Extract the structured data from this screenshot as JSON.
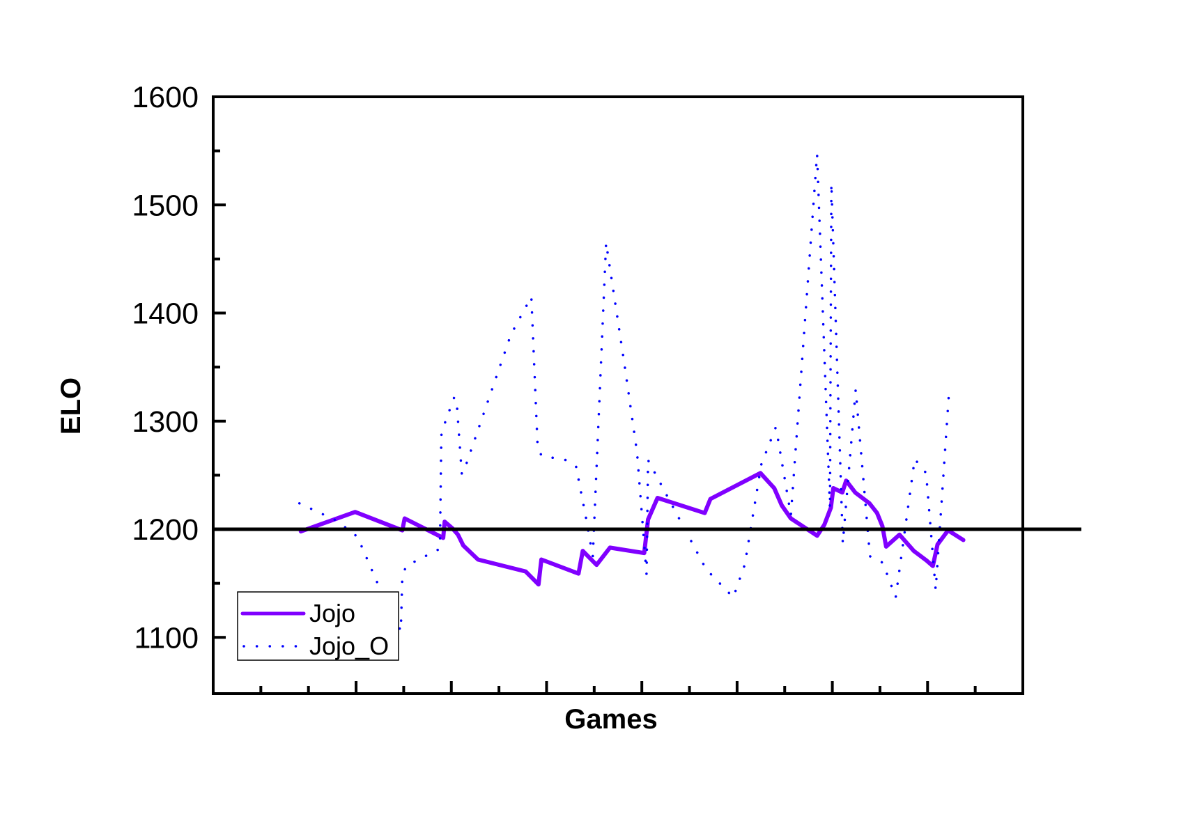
{
  "chart_data": {
    "type": "line",
    "title": "",
    "xlabel": "Games",
    "ylabel": "ELO",
    "xlim": [
      0,
      17
    ],
    "ylim": [
      1048,
      1600
    ],
    "x_ticks_minor": [
      1,
      2,
      3,
      4,
      5,
      6,
      7,
      8,
      9,
      10,
      11,
      12,
      13,
      14,
      15,
      16
    ],
    "x_ticks_major": [
      3,
      5,
      7,
      9,
      11,
      13,
      15
    ],
    "x_tick_labels": [],
    "y_ticks": [
      1100,
      1200,
      1300,
      1400,
      1500,
      1600
    ],
    "y_tick_labels": [
      "1100",
      "1200",
      "1300",
      "1400",
      "1500",
      "1600"
    ],
    "y_minor_ticks": [
      1150,
      1250,
      1350,
      1450,
      1550
    ],
    "grid": false,
    "legend_position": "bottom-left",
    "reference_line": {
      "y": 1200,
      "color": "#000000"
    },
    "series": [
      {
        "name": "Jojo",
        "style": "solid",
        "color": "#8000ff",
        "x": [
          1.84,
          2.98,
          3.97,
          4.02,
          4.83,
          4.86,
          5.02,
          5.14,
          5.25,
          5.56,
          6.56,
          6.83,
          6.89,
          7.67,
          7.76,
          8.05,
          8.33,
          9.05,
          9.13,
          9.33,
          10.32,
          10.44,
          11.49,
          11.78,
          11.94,
          12.13,
          12.68,
          12.83,
          12.97,
          13.02,
          13.21,
          13.29,
          13.48,
          13.78,
          13.94,
          14.05,
          14.13,
          14.41,
          14.71,
          14.98,
          15.11,
          15.21,
          15.43,
          15.75
        ],
        "y": [
          1198,
          1216,
          1199,
          1210,
          1192,
          1207,
          1201,
          1195,
          1185,
          1172,
          1161,
          1149,
          1172,
          1159,
          1180,
          1167,
          1183,
          1178,
          1209,
          1229,
          1215,
          1228,
          1252,
          1238,
          1222,
          1210,
          1194,
          1204,
          1220,
          1238,
          1234,
          1245,
          1234,
          1224,
          1215,
          1203,
          1184,
          1195,
          1180,
          1171,
          1166,
          1186,
          1199,
          1190
        ]
      },
      {
        "name": "Jojo_O",
        "style": "dotted",
        "color": "#0000ff",
        "x": [
          1.81,
          2.59,
          3.03,
          3.49,
          3.94,
          3.97,
          4.05,
          4.76,
          4.79,
          4.87,
          5.06,
          5.11,
          5.22,
          5.32,
          6.25,
          6.68,
          6.81,
          6.89,
          7.41,
          7.62,
          7.83,
          7.97,
          8.25,
          8.63,
          8.9,
          9.1,
          9.13,
          10.35,
          10.92,
          11.16,
          11.51,
          11.81,
          11.86,
          12.13,
          12.68,
          12.95,
          12.98,
          13.22,
          13.49,
          13.79,
          14.06,
          14.33,
          14.73,
          14.97,
          15.17,
          15.46
        ],
        "y": [
          1224,
          1208,
          1193,
          1146,
          1106,
          1156,
          1166,
          1182,
          1287,
          1299,
          1322,
          1319,
          1251,
          1261,
          1380,
          1415,
          1278,
          1268,
          1264,
          1258,
          1210,
          1175,
          1465,
          1354,
          1271,
          1158,
          1264,
          1163,
          1137,
          1167,
          1260,
          1294,
          1283,
          1213,
          1547,
          1219,
          1520,
          1187,
          1329,
          1175,
          1169,
          1137,
          1265,
          1252,
          1144,
          1333
        ]
      }
    ]
  }
}
